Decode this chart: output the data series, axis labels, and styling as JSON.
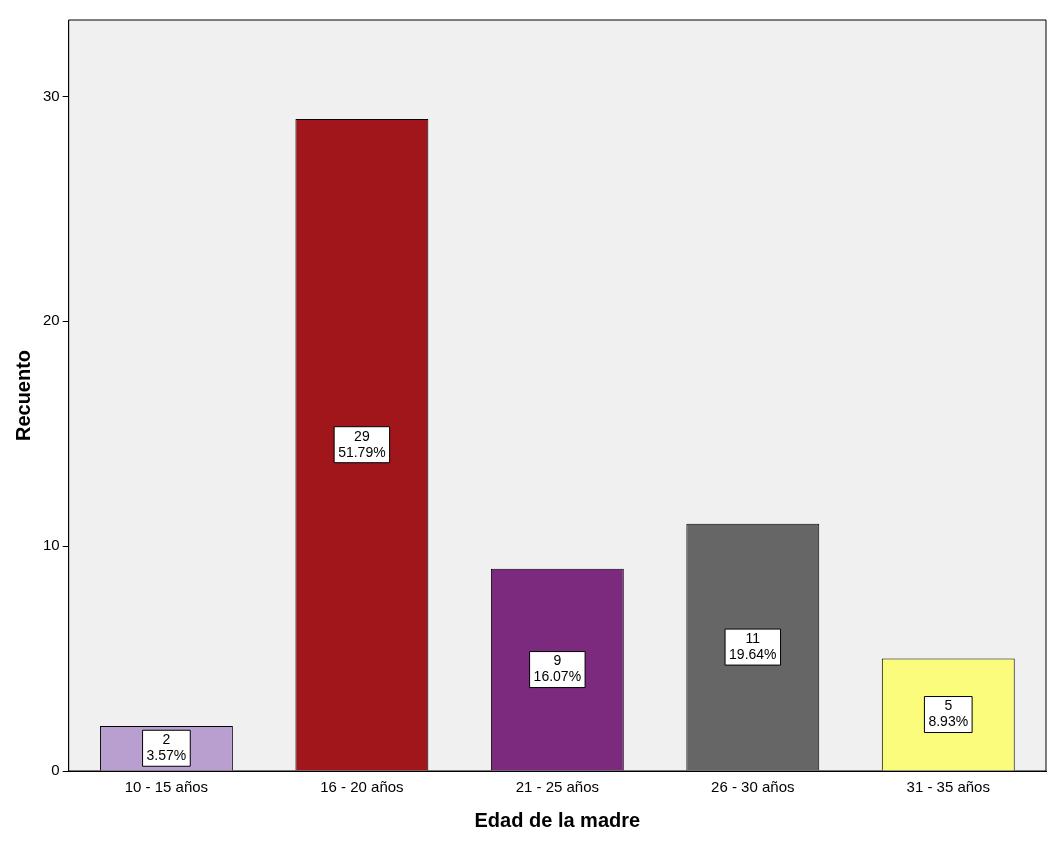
{
  "chart_data": {
    "type": "bar",
    "xlabel": "Edad de la madre",
    "ylabel": "Recuento",
    "categories": [
      "10 - 15 años",
      "16 - 20 años",
      "21 - 25 años",
      "26 - 30 años",
      "31 - 35 años"
    ],
    "values": [
      2,
      29,
      9,
      11,
      5
    ],
    "colors": [
      "#b89fd0",
      "#a0161a",
      "#7b2a7e",
      "#666666",
      "#fcfc7c"
    ],
    "value_labels": [
      "2\n3.57%",
      "29\n51.79%",
      "9\n16.07%",
      "11\n19.64%",
      "5\n8.93%"
    ],
    "ylim": [
      0,
      33.4
    ],
    "yticks": [
      0,
      10,
      20,
      30
    ],
    "grid": false,
    "legend": false
  }
}
